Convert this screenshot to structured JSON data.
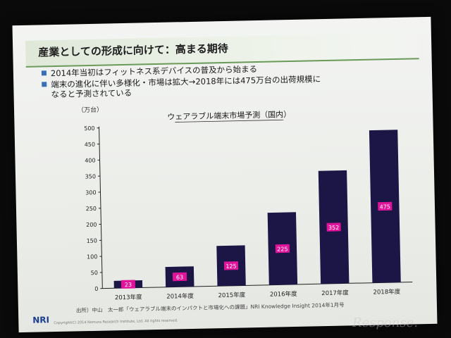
{
  "slide": {
    "title": "産業としての形成に向けて：高まる期待",
    "bullets": [
      "2014年当初はフィットネス系デバイスの普及から始まる",
      "端末の進化に伴い多様化・市場は拡大→2018年には475万台の出荷規模に",
      "なると予測されている"
    ],
    "source": "出所）中山　太一郎「ウェアラブル端末のインパクトと市場化への課題」NRI Knowledge Insight 2014年1月号",
    "logo": "NRI",
    "copyright": "Copyright(C) 2014 Nomura Research Institute, Ltd. All rights reserved."
  },
  "watermark": "Response.",
  "colors": {
    "bar": "#1b1646",
    "label_bg": "#e0149a",
    "accent": "#6a9a57",
    "bullet": "#3b6fb5"
  },
  "chart_data": {
    "type": "bar",
    "title": "ウェアラブル端末市場予測（国内）",
    "ylabel": "（万台）",
    "xlabel": "",
    "categories": [
      "2013年度",
      "2014年度",
      "2015年度",
      "2016年度",
      "2017年度",
      "2018年度"
    ],
    "values": [
      23,
      63,
      125,
      225,
      352,
      475
    ],
    "value_labels": [
      "23",
      "63",
      "125",
      "225",
      "352",
      "475"
    ],
    "ylim": [
      0,
      500
    ],
    "yticks": [
      0,
      50,
      100,
      150,
      200,
      250,
      300,
      350,
      400,
      450,
      500
    ],
    "grid": false,
    "legend": "none"
  }
}
